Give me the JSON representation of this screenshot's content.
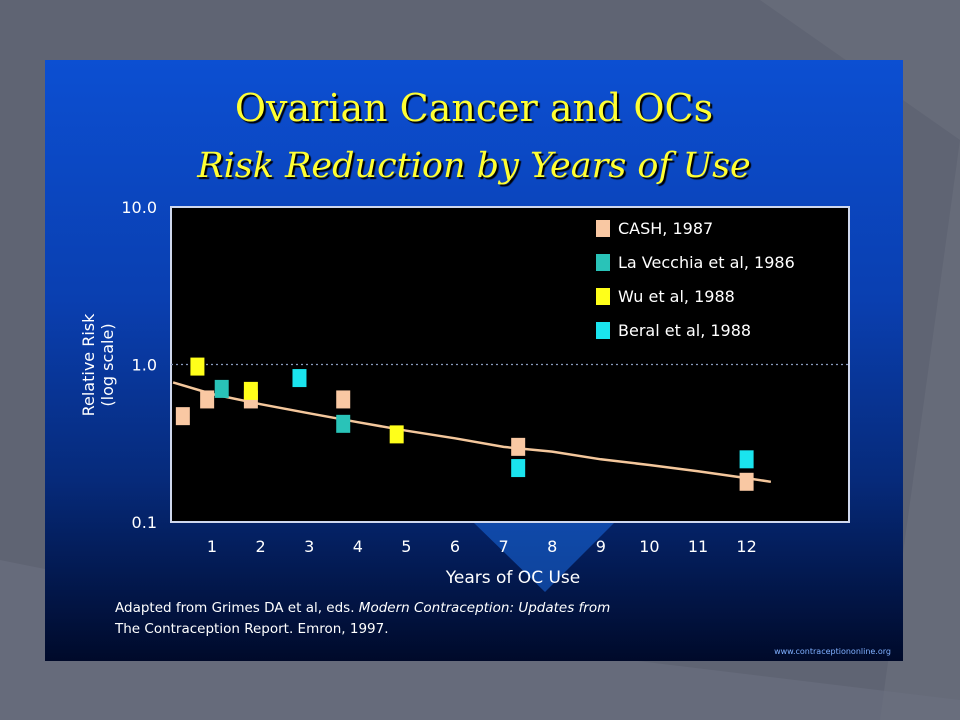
{
  "slide": {
    "title": "Ovarian Cancer and OCs",
    "subtitle": "Risk Reduction by Years of Use",
    "footnote_line1_plain": "Adapted from Grimes DA et al, eds. ",
    "footnote_line1_italic": "Modern Contraception: Updates from",
    "footnote_line2": "The Contraception Report. Emron, 1997.",
    "website": "www.contraceptiononline.org"
  },
  "colors": {
    "cash": "#f9c8a3",
    "lavecchia": "#29c3b8",
    "wu": "#ffff1a",
    "beral": "#1ae4ee",
    "trend": "#f4c79c",
    "plot_bg": "#000000",
    "axis_text": "#ffffff"
  },
  "chart_data": {
    "type": "scatter",
    "xlabel": "Years of OC Use",
    "ylabel_line1": "Relative Risk",
    "ylabel_line2": "(log scale)",
    "x_ticks": [
      "1",
      "2",
      "3",
      "4",
      "5",
      "6",
      "7",
      "8",
      "9",
      "10",
      "11",
      "12"
    ],
    "y_ticks": [
      {
        "value": 10,
        "label": "10.0"
      },
      {
        "value": 1,
        "label": "1.0"
      },
      {
        "value": 0.1,
        "label": "0.1"
      }
    ],
    "y_scale": "log",
    "ylim": [
      0.1,
      10
    ],
    "reference_line": 1.0,
    "legend_position": "top-right",
    "series": [
      {
        "name": "CASH, 1987",
        "color_key": "cash",
        "points": [
          [
            0.4,
            0.47
          ],
          [
            0.9,
            0.6
          ],
          [
            1.8,
            0.6
          ],
          [
            3.7,
            0.6
          ],
          [
            7.3,
            0.3
          ],
          [
            12,
            0.18
          ]
        ]
      },
      {
        "name": "La Vecchia et al,  1986",
        "color_key": "lavecchia",
        "points": [
          [
            1.2,
            0.7
          ],
          [
            3.7,
            0.42
          ]
        ]
      },
      {
        "name": "Wu et al, 1988",
        "color_key": "wu",
        "points": [
          [
            0.7,
            0.97
          ],
          [
            1.8,
            0.68
          ],
          [
            4.8,
            0.36
          ]
        ]
      },
      {
        "name": "Beral et al, 1988",
        "color_key": "beral",
        "points": [
          [
            2.8,
            0.82
          ],
          [
            7.3,
            0.22
          ],
          [
            12,
            0.25
          ]
        ]
      }
    ],
    "trend_line": [
      [
        0.2,
        0.77
      ],
      [
        1,
        0.65
      ],
      [
        2,
        0.56
      ],
      [
        3,
        0.49
      ],
      [
        4,
        0.43
      ],
      [
        5,
        0.38
      ],
      [
        6,
        0.34
      ],
      [
        7,
        0.3
      ],
      [
        8,
        0.28
      ],
      [
        9,
        0.25
      ],
      [
        10,
        0.23
      ],
      [
        11,
        0.21
      ],
      [
        12,
        0.19
      ],
      [
        12.5,
        0.18
      ]
    ]
  }
}
